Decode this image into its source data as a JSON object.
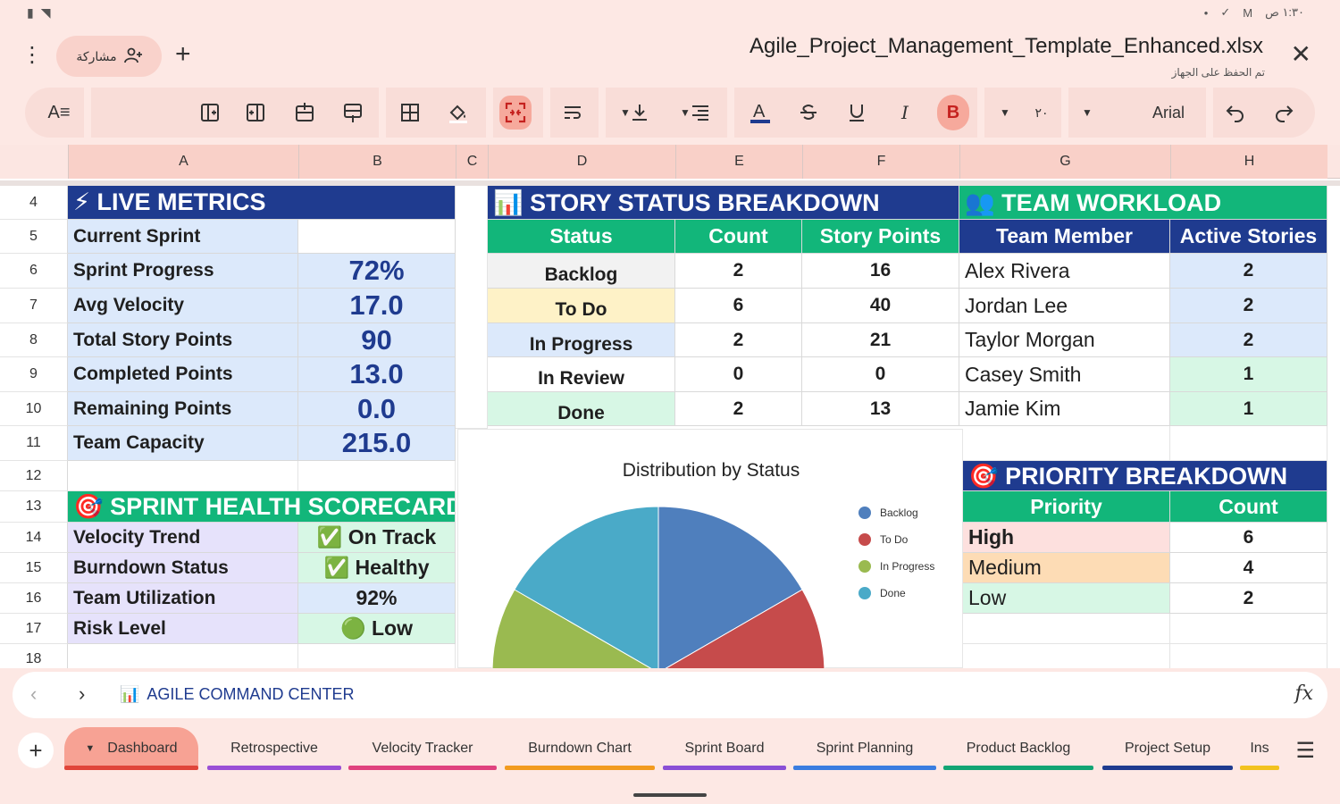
{
  "statusbar": {
    "time": "١:٣٠ ص",
    "dot": "•"
  },
  "titlebar": {
    "share_label": "مشاركة",
    "filename": "Agile_Project_Management_Template_Enhanced.xlsx",
    "saved_status": "تم الحفظ على الجهاز"
  },
  "toolbar": {
    "font_name": "Arial",
    "font_size": "٢٠"
  },
  "columns": [
    "A",
    "B",
    "C",
    "D",
    "E",
    "F",
    "G",
    "H"
  ],
  "rows": [
    "4",
    "5",
    "6",
    "7",
    "8",
    "9",
    "10",
    "11",
    "12",
    "13",
    "14",
    "15",
    "16",
    "17",
    "18"
  ],
  "live_metrics": {
    "header": "⚡ LIVE METRICS",
    "items": [
      {
        "label": "Current Sprint",
        "value": ""
      },
      {
        "label": "Sprint Progress",
        "value": "72%"
      },
      {
        "label": "Avg Velocity",
        "value": "17.0"
      },
      {
        "label": "Total Story Points",
        "value": "90"
      },
      {
        "label": "Completed Points",
        "value": "13.0"
      },
      {
        "label": "Remaining Points",
        "value": "0.0"
      },
      {
        "label": "Team Capacity",
        "value": "215.0"
      }
    ]
  },
  "story_status": {
    "header": "📊 STORY STATUS BREAKDOWN",
    "col_status": "Status",
    "col_count": "Count",
    "col_points": "Story Points",
    "rows": [
      {
        "status": "Backlog",
        "count": "2",
        "points": "16"
      },
      {
        "status": "To Do",
        "count": "6",
        "points": "40"
      },
      {
        "status": "In Progress",
        "count": "2",
        "points": "21"
      },
      {
        "status": "In Review",
        "count": "0",
        "points": "0"
      },
      {
        "status": "Done",
        "count": "2",
        "points": "13"
      }
    ]
  },
  "team_workload": {
    "header": "👥 TEAM WORKLOAD",
    "col_member": "Team Member",
    "col_active": "Active Stories",
    "rows": [
      {
        "member": "Alex Rivera",
        "active": "2"
      },
      {
        "member": "Jordan Lee",
        "active": "2"
      },
      {
        "member": "Taylor Morgan",
        "active": "2"
      },
      {
        "member": "Casey Smith",
        "active": "1"
      },
      {
        "member": "Jamie Kim",
        "active": "1"
      }
    ]
  },
  "sprint_health": {
    "header": "🎯 SPRINT HEALTH SCORECARD",
    "items": [
      {
        "label": "Velocity Trend",
        "value": "✅ On Track"
      },
      {
        "label": "Burndown Status",
        "value": "✅ Healthy"
      },
      {
        "label": "Team Utilization",
        "value": "92%"
      },
      {
        "label": "Risk Level",
        "value": "🟢 Low"
      }
    ]
  },
  "priority": {
    "header": "🎯 PRIORITY BREAKDOWN",
    "col_priority": "Priority",
    "col_count": "Count",
    "rows": [
      {
        "priority": "High",
        "count": "6"
      },
      {
        "priority": "Medium",
        "count": "4"
      },
      {
        "priority": "Low",
        "count": "2"
      }
    ]
  },
  "chart_data": {
    "type": "pie",
    "title": "Distribution by Status",
    "categories": [
      "Backlog",
      "To Do",
      "In Progress",
      "Done"
    ],
    "values": [
      2,
      6,
      2,
      2
    ],
    "colors": [
      "#4f7fbd",
      "#c64b4b",
      "#9aba50",
      "#4aaac8"
    ],
    "legend": "right"
  },
  "formula_bar": {
    "cell_icon": "📊",
    "cell_value": "AGILE COMMAND CENTER"
  },
  "sheet_tabs": [
    {
      "label": "Dashboard",
      "color": "#e0453a",
      "active": true
    },
    {
      "label": "Retrospective",
      "color": "#9a4fd6"
    },
    {
      "label": "Velocity Tracker",
      "color": "#e0427e"
    },
    {
      "label": "Burndown Chart",
      "color": "#f29b1f"
    },
    {
      "label": "Sprint Board",
      "color": "#8a4fd6"
    },
    {
      "label": "Sprint Planning",
      "color": "#3a7de0"
    },
    {
      "label": "Product Backlog",
      "color": "#12a574"
    },
    {
      "label": "Project Setup",
      "color": "#1f3b8f"
    },
    {
      "label": "Ins",
      "color": "#f2c21f"
    }
  ]
}
